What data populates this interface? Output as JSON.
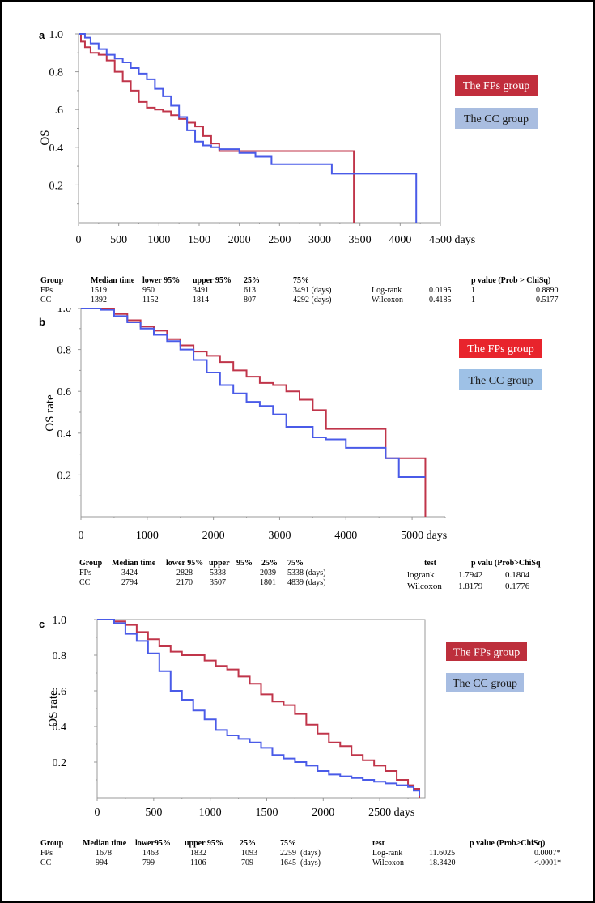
{
  "colors": {
    "fps": "#c0354a",
    "cc": "#4a5be8",
    "fps_legend_a": "#c12d3c",
    "cc_legend_a": "#a9bde0",
    "fps_legend_b": "#e8242c",
    "cc_legend_b": "#9ec1e6",
    "fps_legend_c": "#bd2f3c",
    "cc_legend_c": "#a7bde2",
    "axis": "#999999"
  },
  "chart_data": [
    {
      "panel": "a",
      "type": "line",
      "title": "",
      "xlabel": "",
      "x_unit": "days",
      "ylabel": "OS",
      "xlim": [
        0,
        4500
      ],
      "ylim": [
        0,
        1.0
      ],
      "xticks": [
        "0",
        "500",
        "1000",
        "1500",
        "2000",
        "2500",
        "3000",
        "3500",
        "4000",
        "4500 days"
      ],
      "yticks": [
        "0.2",
        "0.4",
        ".6",
        "0.8",
        "1.0"
      ],
      "legend": [
        "The FPs group",
        "The CC group"
      ],
      "series": [
        {
          "name": "FPs",
          "x": [
            0,
            30,
            80,
            150,
            250,
            350,
            450,
            550,
            650,
            750,
            850,
            950,
            1050,
            1150,
            1250,
            1350,
            1450,
            1550,
            1650,
            1750,
            2000,
            3424,
            3424
          ],
          "y": [
            1.0,
            0.96,
            0.93,
            0.9,
            0.89,
            0.86,
            0.8,
            0.75,
            0.7,
            0.64,
            0.61,
            0.6,
            0.59,
            0.57,
            0.55,
            0.53,
            0.51,
            0.46,
            0.42,
            0.38,
            0.38,
            0.38,
            0.0
          ]
        },
        {
          "name": "CC",
          "x": [
            0,
            80,
            150,
            250,
            350,
            450,
            550,
            650,
            750,
            850,
            950,
            1050,
            1150,
            1250,
            1350,
            1450,
            1550,
            1650,
            1750,
            2000,
            2200,
            2400,
            2800,
            3100,
            3150,
            3700,
            4200,
            4200
          ],
          "y": [
            1.0,
            0.98,
            0.95,
            0.92,
            0.89,
            0.87,
            0.85,
            0.82,
            0.79,
            0.76,
            0.71,
            0.67,
            0.62,
            0.56,
            0.49,
            0.43,
            0.41,
            0.4,
            0.39,
            0.37,
            0.35,
            0.31,
            0.31,
            0.31,
            0.26,
            0.26,
            0.26,
            0.0
          ]
        }
      ],
      "table": {
        "headers": [
          "Group",
          "Median time",
          "lower 95%",
          "upper 95%",
          "25%",
          "75%"
        ],
        "rows": [
          [
            "FPs",
            "1519",
            "950",
            "3491",
            "613",
            "3491 (days)"
          ],
          [
            "CC",
            "1392",
            "1152",
            "1814",
            "807",
            "4292 (days)"
          ]
        ],
        "test_header": "p value (Prob > ChiSq)",
        "tests": [
          [
            "Log-rank",
            "0.0195",
            "1",
            "0.8890"
          ],
          [
            "Wilcoxon",
            "0.4185",
            "1",
            "0.5177"
          ]
        ]
      }
    },
    {
      "panel": "b",
      "type": "line",
      "title": "",
      "xlabel": "",
      "x_unit": "days",
      "ylabel": "OS rate",
      "xlim": [
        0,
        5500
      ],
      "ylim": [
        0,
        1.0
      ],
      "xticks": [
        "0",
        "1000",
        "2000",
        "3000",
        "4000",
        "5000 days"
      ],
      "yticks": [
        "0.2",
        "0.4",
        "0.6",
        "0.8",
        "1.0"
      ],
      "legend": [
        "The FPs group",
        "The CC group"
      ],
      "series": [
        {
          "name": "FPs",
          "x": [
            0,
            300,
            500,
            700,
            900,
            1100,
            1300,
            1500,
            1700,
            1900,
            2100,
            2300,
            2500,
            2700,
            2900,
            3100,
            3300,
            3500,
            3700,
            4000,
            4300,
            4600,
            4600,
            5200,
            5200
          ],
          "y": [
            1.0,
            1.0,
            0.97,
            0.94,
            0.91,
            0.89,
            0.85,
            0.82,
            0.79,
            0.77,
            0.74,
            0.7,
            0.67,
            0.64,
            0.63,
            0.6,
            0.56,
            0.51,
            0.42,
            0.42,
            0.42,
            0.42,
            0.28,
            0.28,
            0.0
          ]
        },
        {
          "name": "CC",
          "x": [
            0,
            300,
            500,
            700,
            900,
            1100,
            1300,
            1500,
            1700,
            1900,
            2100,
            2300,
            2500,
            2700,
            2900,
            3100,
            3300,
            3500,
            3700,
            4000,
            4300,
            4600,
            4800,
            4800,
            5200
          ],
          "y": [
            1.0,
            0.99,
            0.96,
            0.93,
            0.9,
            0.87,
            0.84,
            0.8,
            0.75,
            0.69,
            0.63,
            0.59,
            0.55,
            0.53,
            0.49,
            0.43,
            0.43,
            0.38,
            0.37,
            0.33,
            0.33,
            0.28,
            0.28,
            0.19,
            0.19
          ]
        }
      ],
      "table": {
        "headers": [
          "Group",
          "Median time",
          "lower 95%",
          "upper",
          "95%",
          "25%",
          "75%"
        ],
        "rows": [
          [
            "FPs",
            "3424",
            "2828",
            "5338",
            "",
            "2039",
            "5338 (days)"
          ],
          [
            "CC",
            "2794",
            "2170",
            "3507",
            "",
            "1801",
            "4839 (days)"
          ]
        ],
        "test_header_left": "test",
        "test_header": "p valu (Prob>ChiSq",
        "tests": [
          [
            "logrank",
            "1.7942",
            "0.1804"
          ],
          [
            "Wilcoxon",
            "1.8179",
            "0.1776"
          ]
        ]
      }
    },
    {
      "panel": "c",
      "type": "line",
      "title": "",
      "xlabel": "",
      "x_unit": "days",
      "ylabel": "OS rate",
      "xlim": [
        0,
        2900
      ],
      "ylim": [
        0,
        1.0
      ],
      "xticks": [
        "0",
        "500",
        "1000",
        "1500",
        "2000",
        "2500 days"
      ],
      "yticks": [
        "0.2",
        "0.4",
        "0.6",
        "0.8",
        "1.0"
      ],
      "legend": [
        "The FPs group",
        "The CC group"
      ],
      "series": [
        {
          "name": "FPs",
          "x": [
            0,
            150,
            250,
            350,
            450,
            550,
            650,
            750,
            850,
            950,
            1050,
            1150,
            1250,
            1350,
            1450,
            1550,
            1650,
            1750,
            1850,
            1950,
            2050,
            2150,
            2250,
            2350,
            2450,
            2550,
            2650,
            2750,
            2800,
            2850
          ],
          "y": [
            1.0,
            0.99,
            0.97,
            0.93,
            0.89,
            0.85,
            0.82,
            0.8,
            0.8,
            0.77,
            0.74,
            0.72,
            0.68,
            0.64,
            0.58,
            0.54,
            0.52,
            0.47,
            0.41,
            0.36,
            0.31,
            0.29,
            0.24,
            0.21,
            0.18,
            0.15,
            0.1,
            0.07,
            0.05,
            0.0
          ]
        },
        {
          "name": "CC",
          "x": [
            0,
            150,
            250,
            350,
            450,
            550,
            650,
            750,
            850,
            950,
            1050,
            1150,
            1250,
            1350,
            1450,
            1550,
            1650,
            1750,
            1850,
            1950,
            2050,
            2150,
            2250,
            2350,
            2450,
            2550,
            2650,
            2750,
            2800,
            2850
          ],
          "y": [
            1.0,
            0.98,
            0.92,
            0.88,
            0.81,
            0.71,
            0.6,
            0.55,
            0.49,
            0.44,
            0.38,
            0.35,
            0.33,
            0.31,
            0.28,
            0.24,
            0.22,
            0.2,
            0.18,
            0.15,
            0.13,
            0.12,
            0.11,
            0.1,
            0.09,
            0.08,
            0.07,
            0.06,
            0.04,
            0.01
          ]
        }
      ],
      "table": {
        "headers": [
          "Group",
          "Median time",
          "lower95%",
          "upper 95%",
          "25%",
          "75%"
        ],
        "rows": [
          [
            "FPs",
            "1678",
            "1463",
            "1832",
            "1093",
            "2259  (days)"
          ],
          [
            "CC",
            "994",
            "799",
            "1106",
            "709",
            "1645  (days)"
          ]
        ],
        "test_header_left": "test",
        "test_header": "p value (Prob>ChiSq)",
        "tests": [
          [
            "Log-rank",
            "11.6025",
            "0.0007*"
          ],
          [
            "Wilcoxon",
            "18.3420",
            "<.0001*"
          ]
        ]
      }
    }
  ]
}
